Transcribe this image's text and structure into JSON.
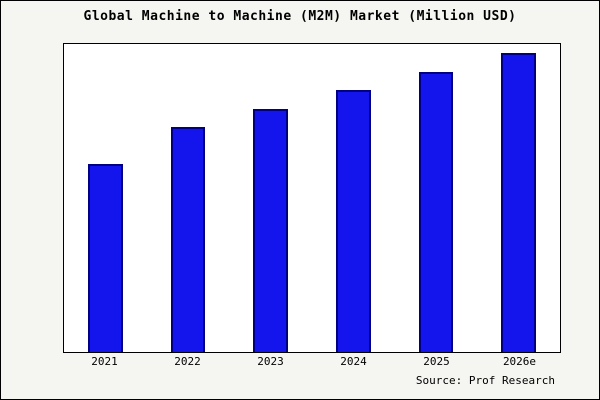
{
  "chart_data": {
    "type": "bar",
    "title": "Global Machine to Machine (M2M) Market (Million USD)",
    "categories": [
      "2021",
      "2022",
      "2023",
      "2024",
      "2025",
      "2026e"
    ],
    "values": [
      61,
      73,
      79,
      85,
      91,
      97
    ],
    "xlabel": "",
    "ylabel": "",
    "ylim": [
      0,
      100
    ],
    "grid": false,
    "legend": false,
    "bar_color": "#1414ec",
    "bar_edge_color": "#000080",
    "plot_background": "#ffffff",
    "outer_background": "#f5f5f2"
  },
  "source": "Source: Prof Research"
}
